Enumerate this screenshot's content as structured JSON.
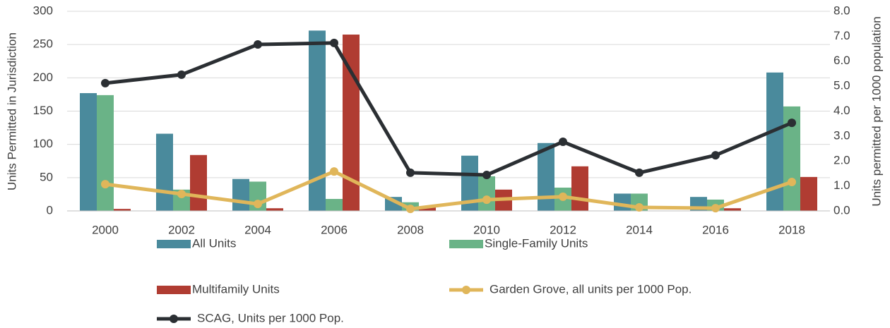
{
  "chart_data": {
    "type": "bar",
    "categories": [
      "2000",
      "2002",
      "2004",
      "2006",
      "2008",
      "2010",
      "2012",
      "2014",
      "2016",
      "2018"
    ],
    "series": [
      {
        "name": "All Units",
        "color": "#4a8a9c",
        "values": [
          177,
          116,
          48,
          271,
          21,
          83,
          102,
          26,
          21,
          208
        ]
      },
      {
        "name": "Single-Family Units",
        "color": "#6ab387",
        "values": [
          174,
          32,
          44,
          18,
          13,
          52,
          35,
          26,
          17,
          157
        ]
      },
      {
        "name": "Multifamily Units",
        "color": "#b03c32",
        "values": [
          3,
          84,
          4,
          265,
          6,
          32,
          67,
          0,
          4,
          51
        ]
      },
      {
        "name": "Garden Grove, all units per 1000 Pop.",
        "color": "#e0b65a",
        "type": "line",
        "axis": "y2",
        "values": [
          1.07,
          0.68,
          0.28,
          1.58,
          0.08,
          0.45,
          0.57,
          0.14,
          0.11,
          1.16
        ]
      },
      {
        "name": "SCAG, Units per 1000 Pop.",
        "color": "#2b2f33",
        "type": "line",
        "axis": "y2",
        "values": [
          5.12,
          5.46,
          6.67,
          6.73,
          1.53,
          1.44,
          2.77,
          1.53,
          2.23,
          3.53
        ]
      }
    ],
    "y_label": "Units Permitted in Jurisdiction",
    "y2_label": "Units permitted per 1000 population",
    "ylim": [
      0,
      300
    ],
    "yticks": [
      0,
      50,
      100,
      150,
      200,
      250,
      300
    ],
    "y2lim": [
      0,
      8
    ],
    "y2ticks": [
      {
        "value": 0,
        "label": "0.0"
      },
      {
        "value": 1,
        "label": "1.0"
      },
      {
        "value": 2,
        "label": "2.0"
      },
      {
        "value": 3,
        "label": "3.0"
      },
      {
        "value": 4,
        "label": "4.0"
      },
      {
        "value": 5,
        "label": "5.0"
      },
      {
        "value": 6,
        "label": "6.0"
      },
      {
        "value": 7,
        "label": "7.0"
      },
      {
        "value": 8,
        "label": "8.0"
      }
    ],
    "grid": true,
    "legend": "bottom"
  }
}
